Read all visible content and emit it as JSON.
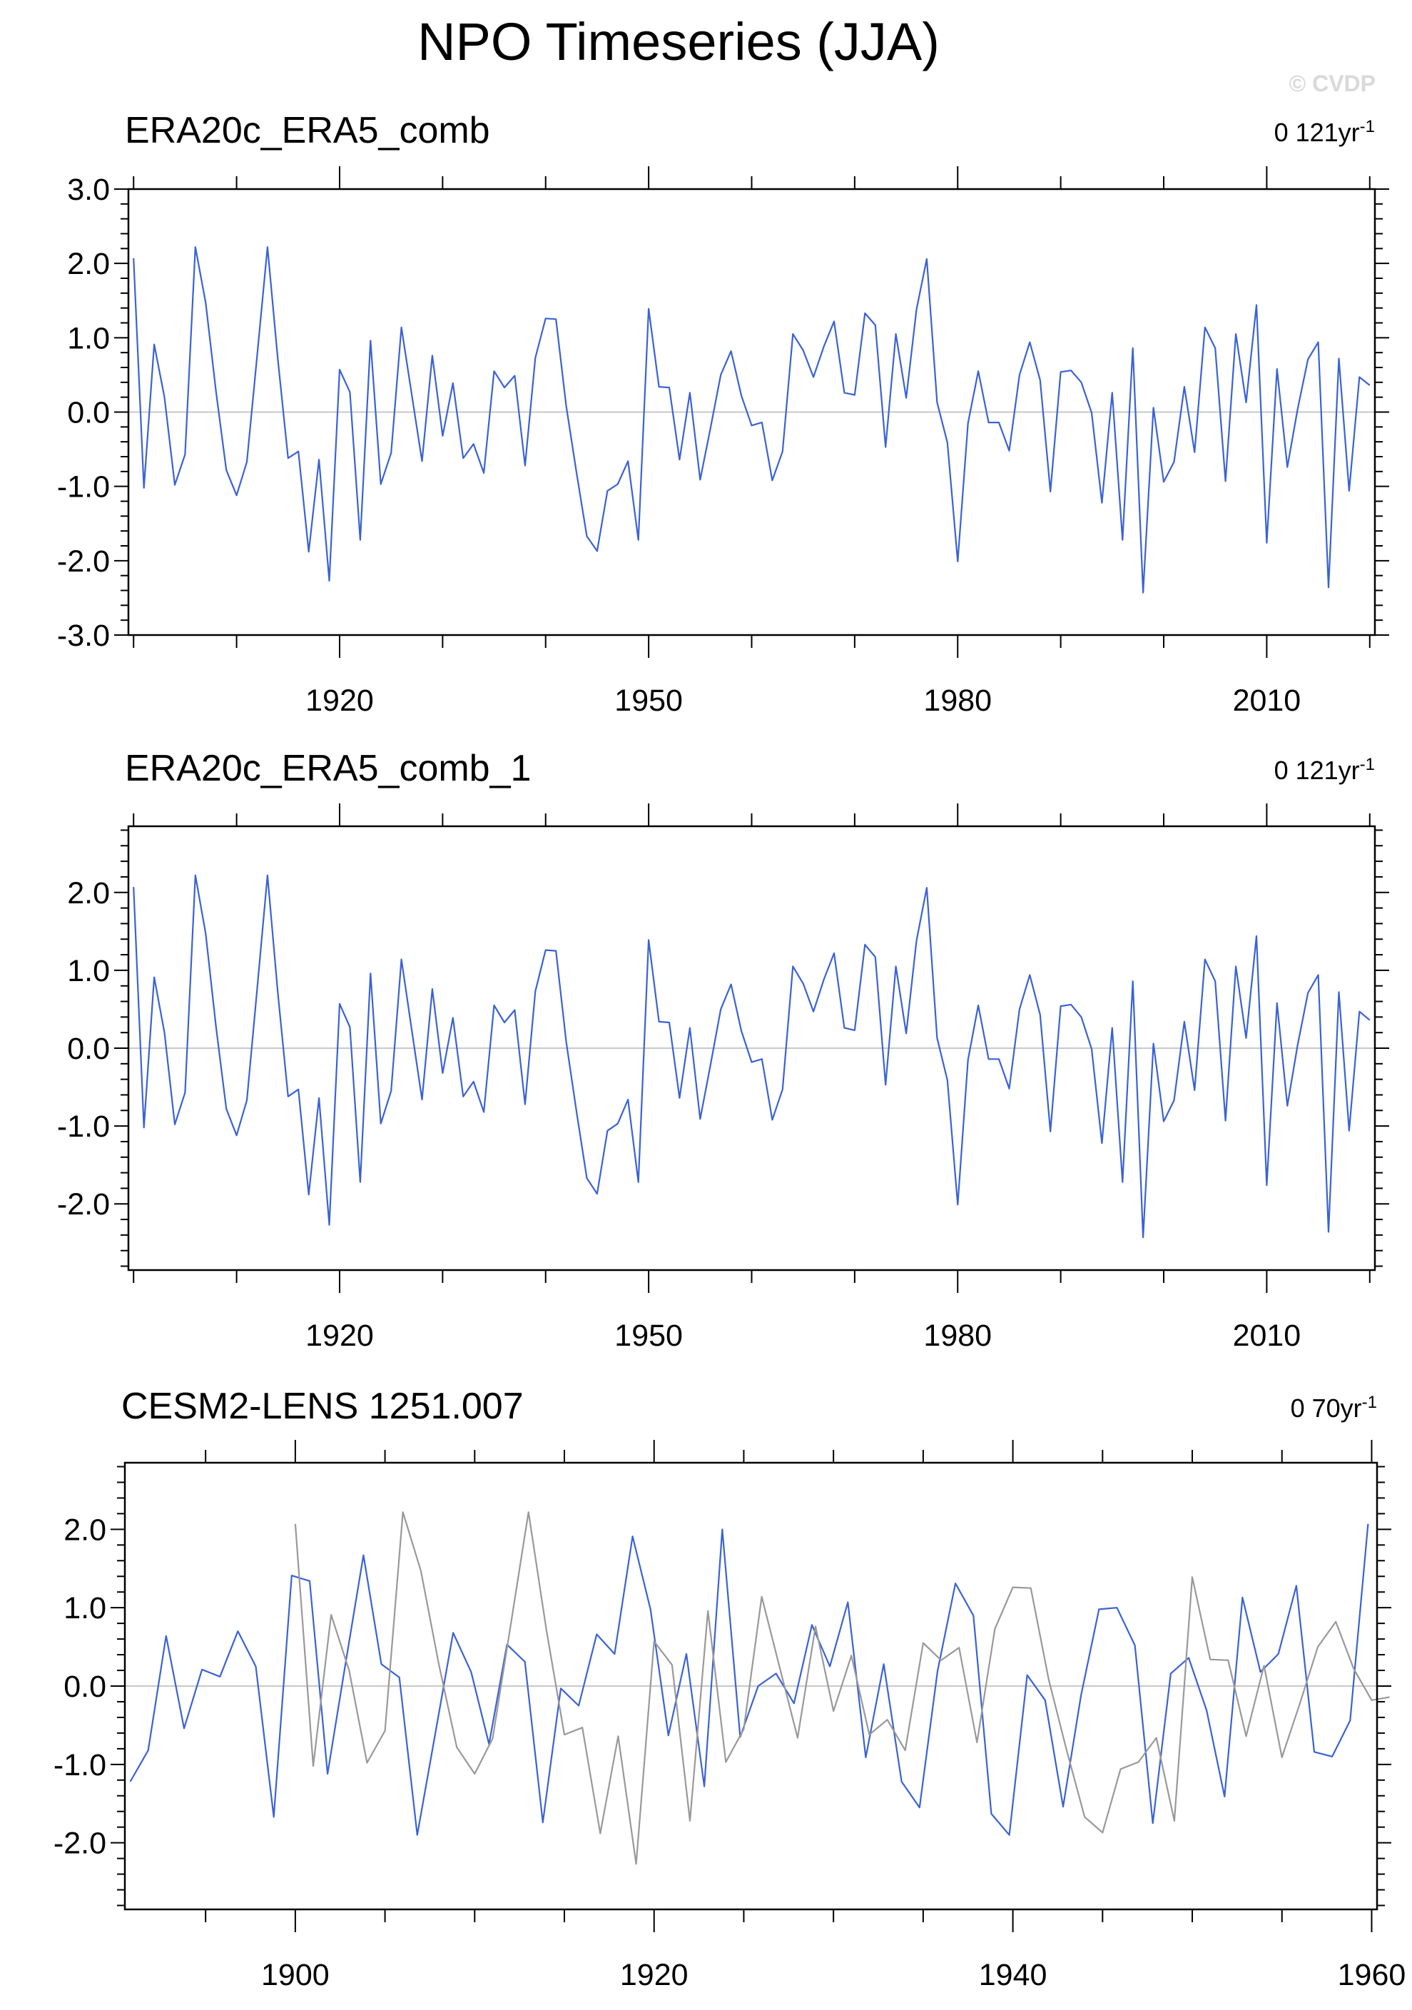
{
  "figure": {
    "title": "NPO Timeseries (JJA)",
    "watermark": "© CVDP"
  },
  "colors": {
    "series": "#3a62d6",
    "reference": "#999999",
    "zero_line": "#c8c8c8",
    "axis": "#000000",
    "watermark": "#d9d9d9"
  },
  "chart_data": [
    {
      "type": "line",
      "title": "ERA20c_ERA5_comb",
      "trend_value": "0",
      "trend_unit": "121yr",
      "trend_exponent": "-1",
      "xlabel": "",
      "ylabel": "",
      "xlim": [
        1899.5,
        2020.5
      ],
      "ylim": [
        -3,
        3
      ],
      "xticks": [
        1920,
        1950,
        1980,
        2010
      ],
      "xminor_step": 10,
      "yticks": [
        3,
        2,
        1,
        0,
        -1,
        -2,
        -3
      ],
      "ytick_labels": [
        "3.0",
        "2.0",
        "1.0",
        "0.0",
        "-1.0",
        "-2.0",
        "-3.0"
      ],
      "zero_line": true,
      "grid": false,
      "series": [
        {
          "x_start": 1900,
          "x_step": 1,
          "color": "#3a62d6",
          "values": [
            2.07,
            -1.02,
            0.91,
            0.2,
            -0.98,
            -0.57,
            2.22,
            1.47,
            0.28,
            -0.78,
            -1.12,
            -0.67,
            0.77,
            2.22,
            0.71,
            -0.62,
            -0.53,
            -1.88,
            -0.64,
            -2.27,
            0.57,
            0.27,
            -1.72,
            0.96,
            -0.97,
            -0.55,
            1.14,
            0.24,
            -0.66,
            0.76,
            -0.32,
            0.39,
            -0.62,
            -0.43,
            -0.82,
            0.55,
            0.33,
            0.49,
            -0.72,
            0.73,
            1.26,
            1.25,
            0.08,
            -0.82,
            -1.67,
            -1.87,
            -1.06,
            -0.97,
            -0.66,
            -1.72,
            1.39,
            0.34,
            0.33,
            -0.64,
            0.26,
            -0.91,
            -0.22,
            0.5,
            0.82,
            0.22,
            -0.18,
            -0.14,
            -0.92,
            -0.53,
            1.05,
            0.83,
            0.47,
            0.88,
            1.22,
            0.26,
            0.23,
            1.33,
            1.17,
            -0.47,
            1.05,
            0.19,
            1.38,
            2.06,
            0.13,
            -0.41,
            -2.01,
            -0.15,
            0.55,
            -0.14,
            -0.14,
            -0.52,
            0.5,
            0.94,
            0.43,
            -1.07,
            0.54,
            0.56,
            0.4,
            -0.01,
            -1.22,
            0.26,
            -1.72,
            0.86,
            -2.43,
            0.06,
            -0.94,
            -0.67,
            0.34,
            -0.54,
            1.14,
            0.86,
            -0.93,
            1.05,
            0.13,
            1.44,
            -1.76,
            0.58,
            -0.74,
            0.04,
            0.71,
            0.94,
            -2.36,
            0.72,
            -1.06,
            0.47,
            0.36
          ]
        }
      ]
    },
    {
      "type": "line",
      "title": "ERA20c_ERA5_comb_1",
      "trend_value": "0",
      "trend_unit": "121yr",
      "trend_exponent": "-1",
      "xlabel": "",
      "ylabel": "",
      "xlim": [
        1899.5,
        2020.5
      ],
      "ylim": [
        -2.85,
        2.85
      ],
      "xticks": [
        1920,
        1950,
        1980,
        2010
      ],
      "xminor_step": 10,
      "yticks": [
        2,
        1,
        0,
        -1,
        -2
      ],
      "ytick_labels": [
        "2.0",
        "1.0",
        "0.0",
        "-1.0",
        "-2.0"
      ],
      "zero_line": true,
      "grid": false,
      "series": [
        {
          "x_start": 1900,
          "x_step": 1,
          "color": "#3a62d6",
          "values": [
            2.07,
            -1.02,
            0.91,
            0.2,
            -0.98,
            -0.57,
            2.22,
            1.47,
            0.28,
            -0.78,
            -1.12,
            -0.67,
            0.77,
            2.22,
            0.71,
            -0.62,
            -0.53,
            -1.88,
            -0.64,
            -2.27,
            0.57,
            0.27,
            -1.72,
            0.96,
            -0.97,
            -0.55,
            1.14,
            0.24,
            -0.66,
            0.76,
            -0.32,
            0.39,
            -0.62,
            -0.43,
            -0.82,
            0.55,
            0.33,
            0.49,
            -0.72,
            0.73,
            1.26,
            1.25,
            0.08,
            -0.82,
            -1.67,
            -1.87,
            -1.06,
            -0.97,
            -0.66,
            -1.72,
            1.39,
            0.34,
            0.33,
            -0.64,
            0.26,
            -0.91,
            -0.22,
            0.5,
            0.82,
            0.22,
            -0.18,
            -0.14,
            -0.92,
            -0.53,
            1.05,
            0.83,
            0.47,
            0.88,
            1.22,
            0.26,
            0.23,
            1.33,
            1.17,
            -0.47,
            1.05,
            0.19,
            1.38,
            2.06,
            0.13,
            -0.41,
            -2.01,
            -0.15,
            0.55,
            -0.14,
            -0.14,
            -0.52,
            0.5,
            0.94,
            0.43,
            -1.07,
            0.54,
            0.56,
            0.4,
            -0.01,
            -1.22,
            0.26,
            -1.72,
            0.86,
            -2.43,
            0.06,
            -0.94,
            -0.67,
            0.34,
            -0.54,
            1.14,
            0.86,
            -0.93,
            1.05,
            0.13,
            1.44,
            -1.76,
            0.58,
            -0.74,
            0.04,
            0.71,
            0.94,
            -2.36,
            0.72,
            -1.06,
            0.47,
            0.36
          ]
        }
      ]
    },
    {
      "type": "line",
      "title": "CESM2-LENS 1251.007",
      "trend_value": "0",
      "trend_unit": "70yr",
      "trend_exponent": "-1",
      "xlabel": "",
      "ylabel": "",
      "xlim": [
        1890.5,
        1960.3
      ],
      "ylim": [
        -2.85,
        2.85
      ],
      "xticks": [
        1900,
        1920,
        1940,
        1960
      ],
      "xminor_step": 5,
      "yticks": [
        2,
        1,
        0,
        -1,
        -2
      ],
      "ytick_labels": [
        "2.0",
        "1.0",
        "0.0",
        "-1.0",
        "-2.0"
      ],
      "zero_line": true,
      "grid": false,
      "series": [
        {
          "x_start": 1890.8,
          "x_step": 1,
          "color": "#3a62d6",
          "values": [
            -1.22,
            -0.82,
            0.64,
            -0.54,
            0.21,
            0.12,
            0.7,
            0.25,
            -1.67,
            1.41,
            1.34,
            -1.12,
            0.29,
            1.67,
            0.28,
            0.11,
            -1.9,
            -0.61,
            0.68,
            0.18,
            -0.74,
            0.53,
            0.31,
            -1.74,
            -0.03,
            -0.25,
            0.66,
            0.41,
            1.91,
            0.98,
            -0.63,
            0.41,
            -1.28,
            2.0,
            -0.65,
            0.0,
            0.16,
            -0.22,
            0.78,
            0.25,
            1.07,
            -0.91,
            0.28,
            -1.22,
            -1.55,
            0.19,
            1.31,
            0.9,
            -1.63,
            -1.9,
            0.14,
            -0.18,
            -1.54,
            -0.12,
            0.98,
            1.0,
            0.52,
            -1.75,
            0.16,
            0.36,
            -0.31,
            -1.41,
            1.13,
            0.18,
            0.41,
            1.28,
            -0.84,
            -0.9,
            -0.44,
            2.07
          ]
        },
        {
          "x_start": 1900,
          "x_step": 1,
          "color": "#999999",
          "values": [
            2.07,
            -1.02,
            0.91,
            0.2,
            -0.98,
            -0.57,
            2.22,
            1.47,
            0.28,
            -0.78,
            -1.12,
            -0.67,
            0.77,
            2.22,
            0.71,
            -0.62,
            -0.53,
            -1.88,
            -0.64,
            -2.27,
            0.57,
            0.27,
            -1.72,
            0.96,
            -0.97,
            -0.55,
            1.14,
            0.24,
            -0.66,
            0.76,
            -0.32,
            0.39,
            -0.62,
            -0.43,
            -0.82,
            0.55,
            0.33,
            0.49,
            -0.72,
            0.73,
            1.26,
            1.25,
            0.08,
            -0.82,
            -1.67,
            -1.87,
            -1.06,
            -0.97,
            -0.66,
            -1.72,
            1.39,
            0.34,
            0.33,
            -0.64,
            0.26,
            -0.91,
            -0.22,
            0.5,
            0.82,
            0.22,
            -0.18,
            -0.14
          ]
        }
      ]
    }
  ]
}
